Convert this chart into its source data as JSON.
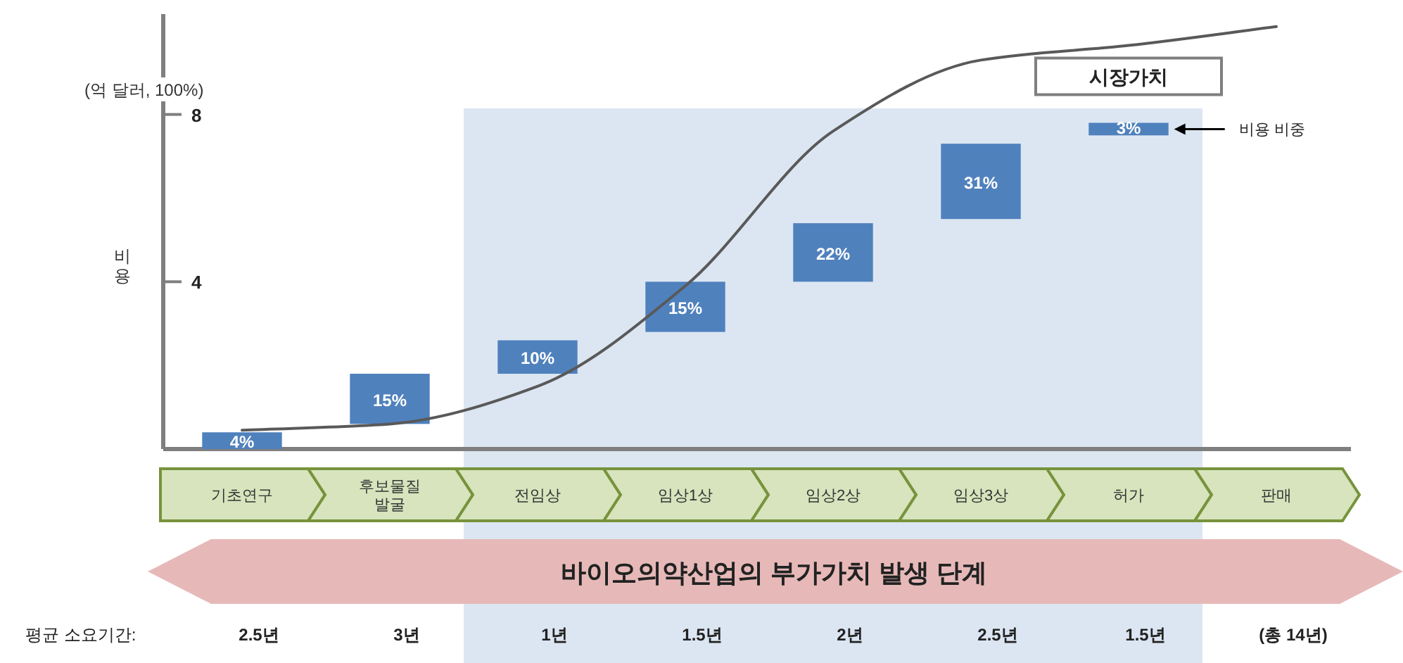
{
  "chart_data": {
    "type": "bar",
    "title": "바이오의약산업의 부가가치 발생 단계",
    "ylabel": "비용",
    "categories": [
      "기초연구",
      "후보물질\n발굴",
      "전임상",
      "임상1상",
      "임상2상",
      "임상3상",
      "허가",
      "판매"
    ],
    "series": [
      {
        "color": "#4f81bd",
        "values": [
          0.4,
          1.2,
          0.8,
          1.2,
          1.4,
          1.8,
          0.3,
          null
        ],
        "base": [
          0,
          0.6,
          1.8,
          2.8,
          4.0,
          5.5,
          7.5,
          null
        ]
      },
      {
        "type": "line",
        "name": "시장가치",
        "color": "#595959",
        "values": [
          0.45,
          0.6,
          1.5,
          3.9,
          7.6,
          9.3,
          9.65,
          10.1
        ]
      }
    ],
    "ylim": [
      0,
      10.4
    ],
    "yticks": [
      4,
      8
    ],
    "bands": [
      {
        "axis": "x",
        "from": "전임상",
        "to": "허가",
        "color": "#dce6f2"
      }
    ],
    "annotations": [
      "(억 달러, 100%)",
      "비용 비중",
      "평균 소요기간:",
      "2.5년",
      "3년",
      "1년",
      "1.5년",
      "2년",
      "2.5년",
      "1.5년",
      "(총 14년)",
      "4%",
      "15%",
      "10%",
      "15%",
      "22%",
      "31%",
      "3%"
    ],
    "legend": false,
    "grid": false,
    "marker": "none",
    "line_style": "solid"
  }
}
